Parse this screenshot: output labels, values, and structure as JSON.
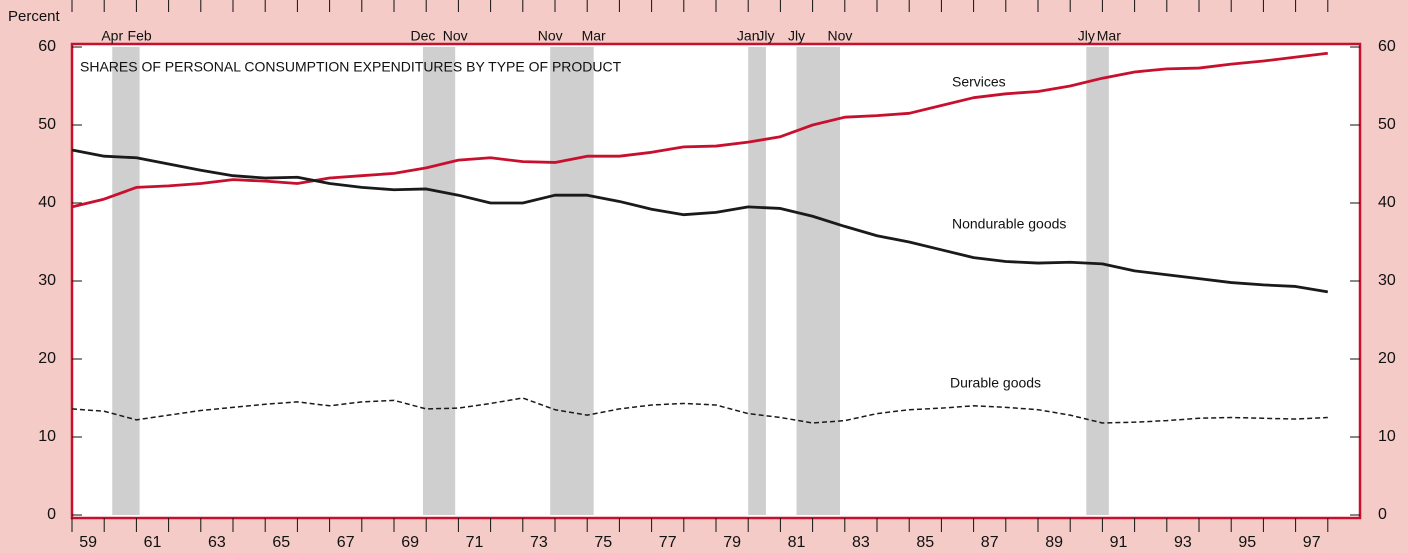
{
  "chart_data": {
    "type": "line",
    "title": "SHARES OF PERSONAL CONSUMPTION EXPENDITURES BY TYPE OF PRODUCT",
    "y_label": "Percent",
    "x": [
      1959,
      1960,
      1961,
      1962,
      1963,
      1964,
      1965,
      1966,
      1967,
      1968,
      1969,
      1970,
      1971,
      1972,
      1973,
      1974,
      1975,
      1976,
      1977,
      1978,
      1979,
      1980,
      1981,
      1982,
      1983,
      1984,
      1985,
      1986,
      1987,
      1988,
      1989,
      1990,
      1991,
      1992,
      1993,
      1994,
      1995,
      1996,
      1997,
      1998
    ],
    "series": [
      {
        "name": "Services",
        "color": "#c8102e",
        "dash": false,
        "values": [
          39.5,
          40.5,
          42,
          42.2,
          42.5,
          43,
          42.8,
          42.5,
          43.2,
          43.5,
          43.8,
          44.5,
          45.5,
          45.8,
          45.3,
          45.2,
          46,
          46,
          46.5,
          47.2,
          47.3,
          47.8,
          48.5,
          50,
          51,
          51.2,
          51.5,
          52.5,
          53.5,
          54,
          54.3,
          55,
          56,
          56.8,
          57.2,
          57.3,
          57.8,
          58.2,
          58.7,
          59.2
        ]
      },
      {
        "name": "Nondurable goods",
        "color": "#1a1a1a",
        "dash": false,
        "values": [
          46.8,
          46,
          45.8,
          45,
          44.2,
          43.5,
          43.2,
          43.3,
          42.5,
          42,
          41.7,
          41.8,
          41,
          40,
          40,
          41,
          41,
          40.2,
          39.2,
          38.5,
          38.8,
          39.5,
          39.3,
          38.3,
          37,
          35.8,
          35,
          34,
          33,
          32.5,
          32.3,
          32.4,
          32.2,
          31.3,
          30.8,
          30.3,
          29.8,
          29.5,
          29.3,
          28.6
        ]
      },
      {
        "name": "Durable goods",
        "color": "#1a1a1a",
        "dash": true,
        "values": [
          13.6,
          13.3,
          12.2,
          12.8,
          13.4,
          13.8,
          14.2,
          14.5,
          14,
          14.5,
          14.7,
          13.6,
          13.7,
          14.3,
          15,
          13.5,
          12.8,
          13.6,
          14.1,
          14.3,
          14.1,
          13,
          12.5,
          11.8,
          12.1,
          13,
          13.5,
          13.7,
          14,
          13.8,
          13.5,
          12.8,
          11.8,
          11.9,
          12.1,
          12.4,
          12.5,
          12.4,
          12.3,
          12.5
        ]
      }
    ],
    "recessions": [
      {
        "start": 1960.25,
        "end": 1961.1,
        "start_label": "Apr",
        "end_label": "Feb"
      },
      {
        "start": 1969.9,
        "end": 1970.9,
        "start_label": "Dec",
        "end_label": "Nov"
      },
      {
        "start": 1973.85,
        "end": 1975.2,
        "start_label": "Nov",
        "end_label": "Mar"
      },
      {
        "start": 1980.0,
        "end": 1980.55,
        "start_label": "Jan",
        "end_label": "Jly"
      },
      {
        "start": 1981.5,
        "end": 1982.85,
        "start_label": "Jly",
        "end_label": "Nov"
      },
      {
        "start": 1990.5,
        "end": 1991.2,
        "start_label": "Jly",
        "end_label": "Mar"
      }
    ],
    "xlim": [
      1959,
      1999
    ],
    "xticks": [
      {
        "value": 1959,
        "label": "59"
      },
      {
        "value": 1961,
        "label": "61"
      },
      {
        "value": 1963,
        "label": "63"
      },
      {
        "value": 1965,
        "label": "65"
      },
      {
        "value": 1967,
        "label": "67"
      },
      {
        "value": 1969,
        "label": "69"
      },
      {
        "value": 1971,
        "label": "71"
      },
      {
        "value": 1973,
        "label": "73"
      },
      {
        "value": 1975,
        "label": "75"
      },
      {
        "value": 1977,
        "label": "77"
      },
      {
        "value": 1979,
        "label": "79"
      },
      {
        "value": 1981,
        "label": "81"
      },
      {
        "value": 1983,
        "label": "83"
      },
      {
        "value": 1985,
        "label": "85"
      },
      {
        "value": 1987,
        "label": "87"
      },
      {
        "value": 1989,
        "label": "89"
      },
      {
        "value": 1991,
        "label": "91"
      },
      {
        "value": 1993,
        "label": "93"
      },
      {
        "value": 1995,
        "label": "95"
      },
      {
        "value": 1997,
        "label": "97"
      }
    ],
    "ylim": [
      0,
      60
    ],
    "yticks": [
      0,
      10,
      20,
      30,
      40,
      50,
      60
    ]
  }
}
